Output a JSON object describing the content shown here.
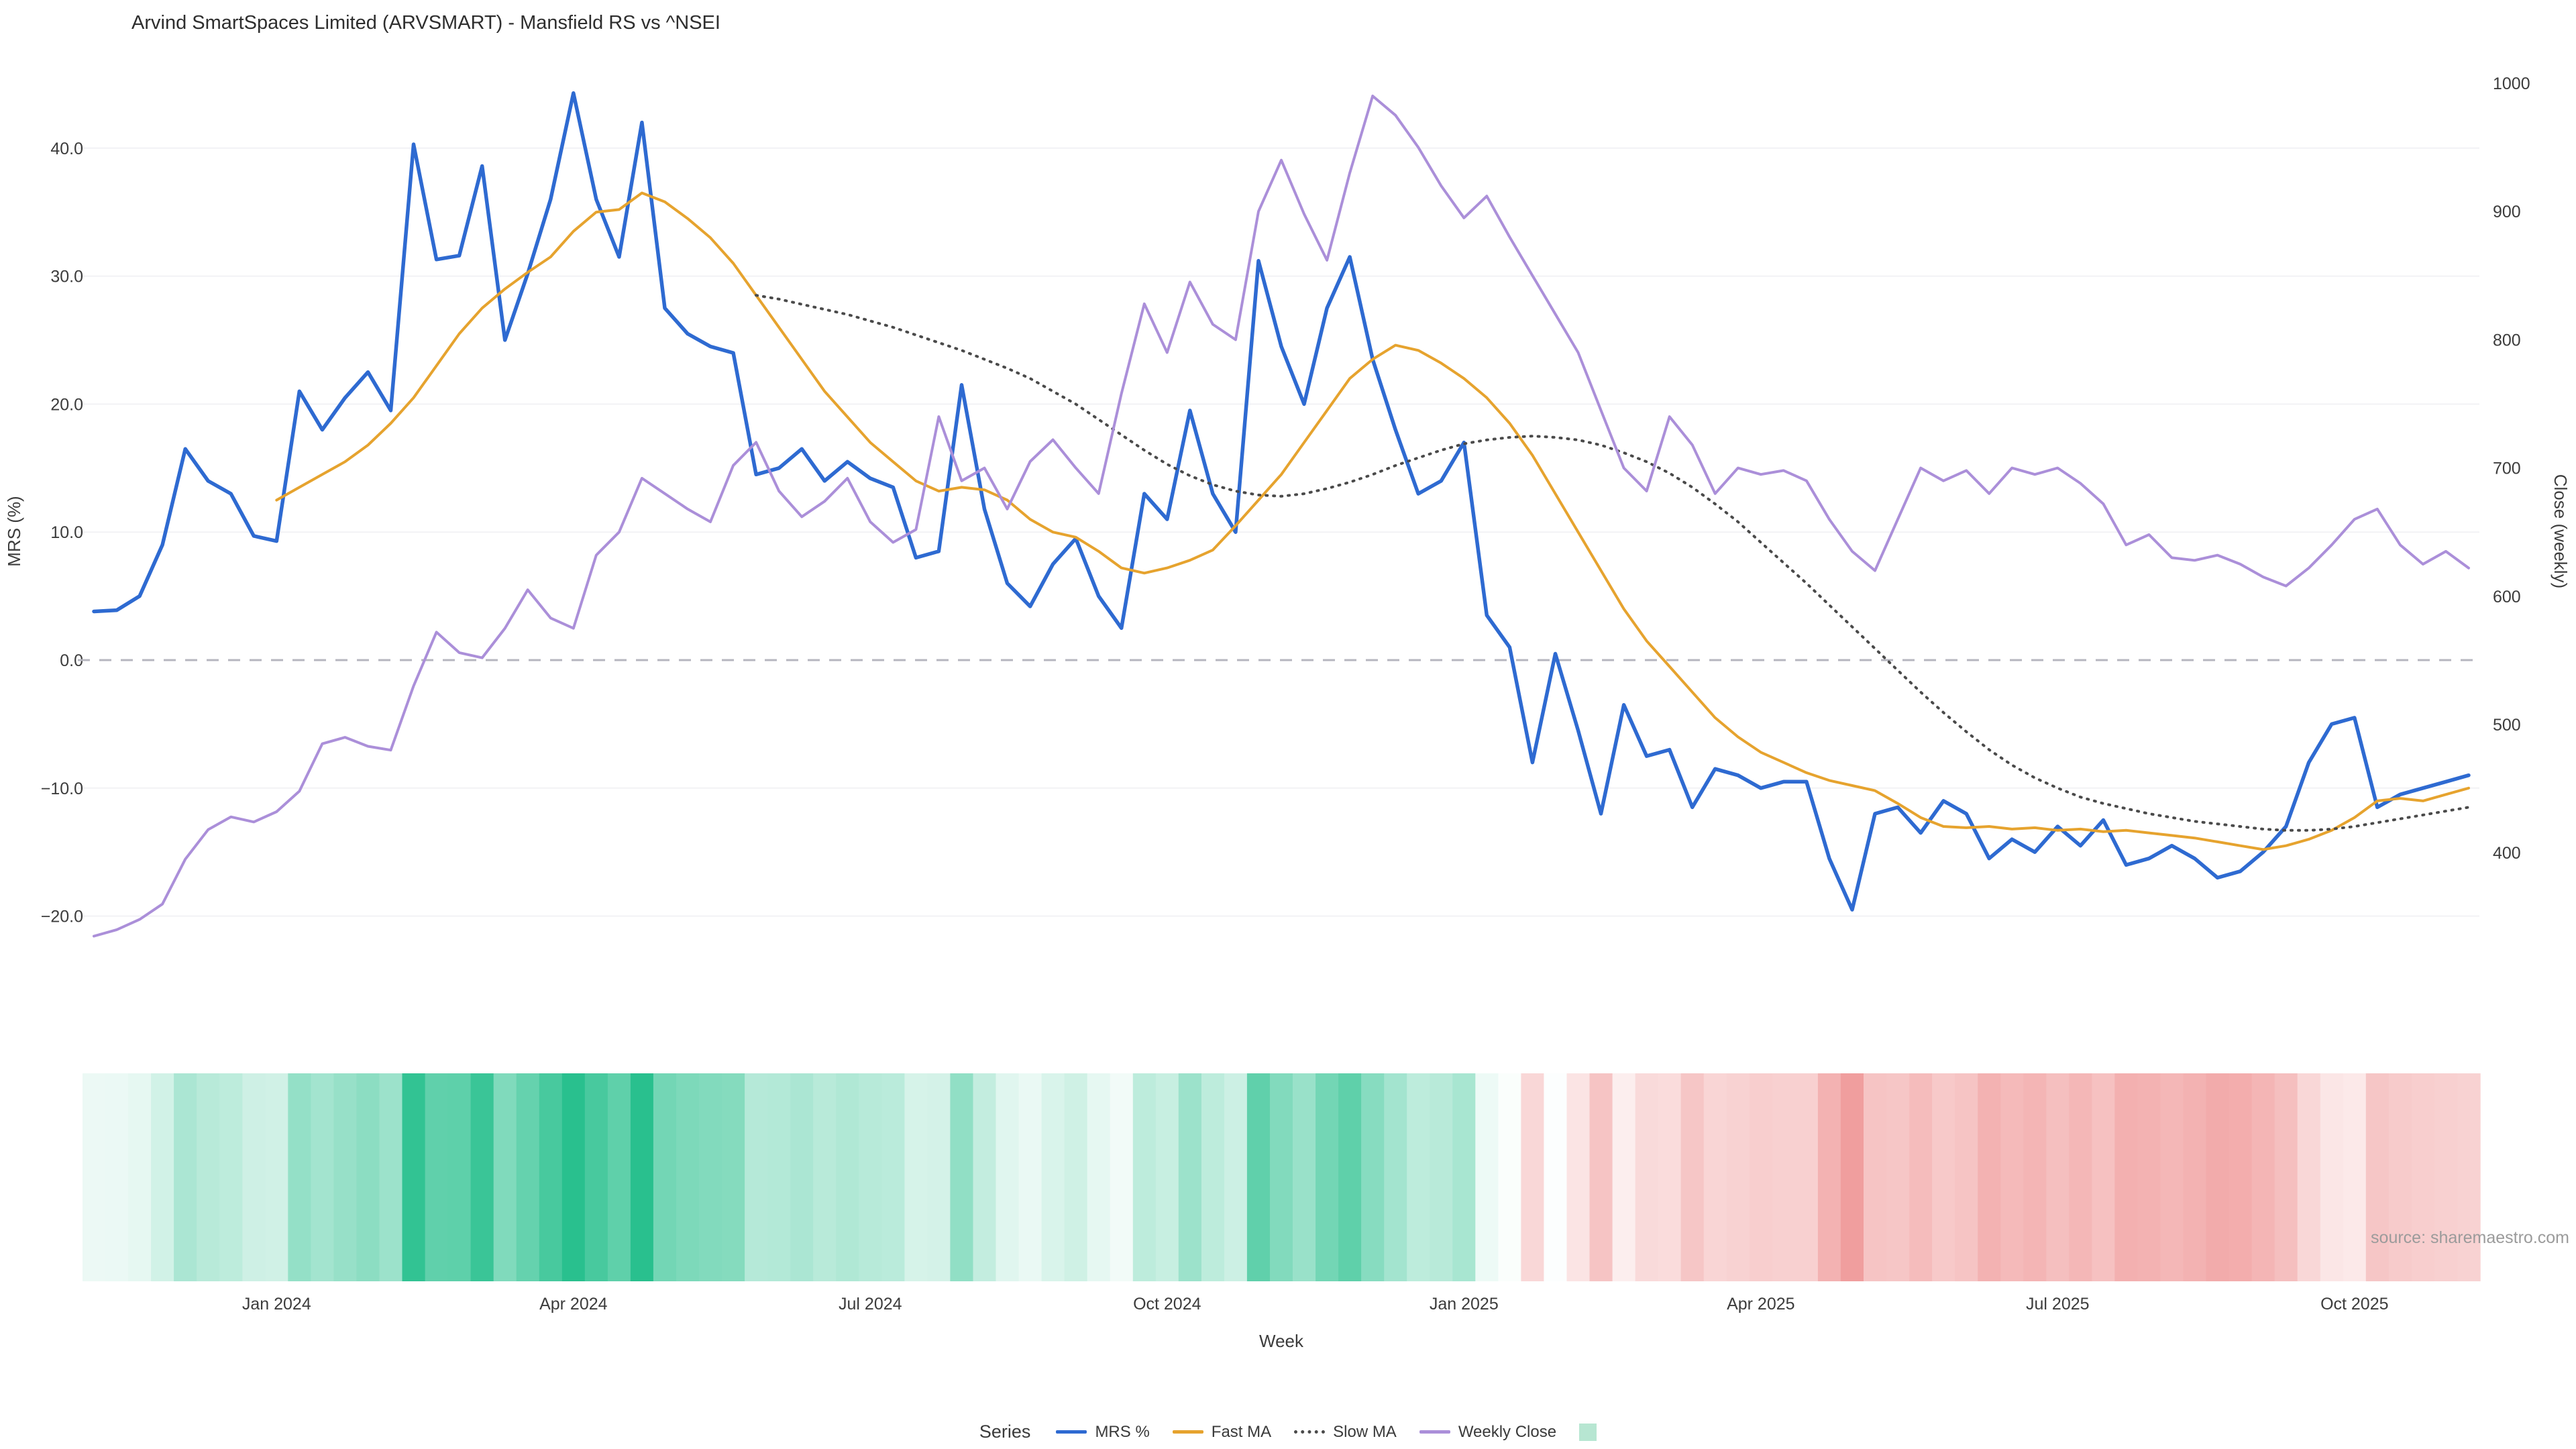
{
  "title": "Arvind SmartSpaces Limited (ARVSMART) - Mansfield RS vs ^NSEI",
  "source": "source: sharemaestro.com",
  "legend": {
    "title": "Series",
    "items": [
      {
        "label": "MRS %",
        "slug": "mrs",
        "swatch": "line",
        "color": "#2e6ad1"
      },
      {
        "label": "Fast MA",
        "slug": "fast-ma",
        "swatch": "line",
        "color": "#e6a32e"
      },
      {
        "label": "Slow MA",
        "slug": "slow-ma",
        "swatch": "dotted",
        "color": "#4a4a4a"
      },
      {
        "label": "Weekly Close",
        "slug": "weekly-close",
        "swatch": "line",
        "color": "#ab8fd9"
      },
      {
        "label": "",
        "slug": "heatmap",
        "swatch": "square",
        "color": "#b7e6d2"
      }
    ]
  },
  "chart_data": {
    "type": "line",
    "title": "Arvind SmartSpaces Limited (ARVSMART) - Mansfield RS vs ^NSEI",
    "xlabel": "Week",
    "ylabel_left": "MRS (%)",
    "ylabel_right": "Close (weekly)",
    "n_weeks": 105,
    "x_tick_indices": [
      8,
      21,
      34,
      47,
      60,
      73,
      86,
      99
    ],
    "x_tick_labels": [
      "Jan 2024",
      "Apr 2024",
      "Jul 2024",
      "Oct 2024",
      "Jan 2025",
      "Apr 2025",
      "Jul 2025",
      "Oct 2025"
    ],
    "left_axis": {
      "values": [
        40,
        30,
        20,
        10,
        0,
        -10,
        -20
      ],
      "labels": [
        "40.0",
        "30.0",
        "20.0",
        "10.0",
        "0.0",
        "−10.0",
        "−20.0"
      ]
    },
    "right_axis": {
      "values": [
        1000,
        900,
        800,
        700,
        600,
        500,
        400
      ],
      "labels": [
        "1000",
        "900",
        "800",
        "700",
        "600",
        "500",
        "400"
      ]
    },
    "zero_line": true,
    "grid": "horizontal",
    "legend_position": "bottom-center",
    "series": [
      {
        "name": "MRS %",
        "slug": "mrs",
        "axis": "left",
        "style": "solid",
        "color": "#2e6ad1",
        "values": [
          3.8,
          3.9,
          5.0,
          9.0,
          16.5,
          14.0,
          13.0,
          9.7,
          9.3,
          21.0,
          18.0,
          20.5,
          22.5,
          19.5,
          40.3,
          31.3,
          31.6,
          38.6,
          25.0,
          30.2,
          36.0,
          44.3,
          36.0,
          31.5,
          42.0,
          27.5,
          25.5,
          24.5,
          24.0,
          14.5,
          15.0,
          16.5,
          14.0,
          15.5,
          14.2,
          13.5,
          8.0,
          8.5,
          21.5,
          11.8,
          6.0,
          4.2,
          7.5,
          9.5,
          5.0,
          2.5,
          13.0,
          11.0,
          19.5,
          13.0,
          10.0,
          31.2,
          24.5,
          20.0,
          27.5,
          31.5,
          23.5,
          18.0,
          13.0,
          14.0,
          17.0,
          3.5,
          1.0,
          -8.0,
          0.5,
          -5.5,
          -12.0,
          -3.5,
          -7.5,
          -7.0,
          -11.5,
          -8.5,
          -9.0,
          -10.0,
          -9.5,
          -9.5,
          -15.5,
          -19.5,
          -12.0,
          -11.5,
          -13.5,
          -11.0,
          -12.0,
          -15.5,
          -14.0,
          -15.0,
          -13.0,
          -14.5,
          -12.5,
          -16.0,
          -15.5,
          -14.5,
          -15.5,
          -17.0,
          -16.5,
          -15.0,
          -13.0,
          -8.0,
          -5.0,
          -4.5,
          -11.5,
          -10.5,
          -10.0,
          -9.5,
          -9.0
        ]
      },
      {
        "name": "Fast MA",
        "slug": "fast-ma",
        "axis": "left",
        "style": "solid",
        "color": "#e6a32e",
        "values": [
          null,
          null,
          null,
          null,
          null,
          null,
          null,
          null,
          12.5,
          13.5,
          14.5,
          15.5,
          16.8,
          18.5,
          20.5,
          23.0,
          25.5,
          27.5,
          29.0,
          30.3,
          31.5,
          33.5,
          35.0,
          35.2,
          36.5,
          35.8,
          34.5,
          33.0,
          31.0,
          28.5,
          26.0,
          23.5,
          21.0,
          19.0,
          17.0,
          15.5,
          14.0,
          13.2,
          13.5,
          13.3,
          12.5,
          11.0,
          10.0,
          9.6,
          8.5,
          7.2,
          6.8,
          7.2,
          7.8,
          8.6,
          10.5,
          12.5,
          14.5,
          17.0,
          19.5,
          22.0,
          23.5,
          24.6,
          24.2,
          23.2,
          22.0,
          20.5,
          18.5,
          16.0,
          13.0,
          10.0,
          7.0,
          4.0,
          1.5,
          -0.5,
          -2.5,
          -4.5,
          -6.0,
          -7.2,
          -8.0,
          -8.8,
          -9.4,
          -9.8,
          -10.2,
          -11.2,
          -12.3,
          -13.0,
          -13.1,
          -13.0,
          -13.2,
          -13.1,
          -13.3,
          -13.2,
          -13.4,
          -13.3,
          -13.5,
          -13.7,
          -13.9,
          -14.2,
          -14.5,
          -14.8,
          -14.5,
          -14.0,
          -13.3,
          -12.3,
          -11.0,
          -10.8,
          -11.0,
          -10.5,
          -10.0
        ]
      },
      {
        "name": "Slow MA",
        "slug": "slow-ma",
        "axis": "left",
        "style": "dotted",
        "color": "#4a4a4a",
        "values": [
          null,
          null,
          null,
          null,
          null,
          null,
          null,
          null,
          null,
          null,
          null,
          null,
          null,
          null,
          null,
          null,
          null,
          null,
          null,
          null,
          null,
          null,
          null,
          null,
          null,
          null,
          null,
          null,
          null,
          28.5,
          28.2,
          27.8,
          27.4,
          27.0,
          26.5,
          26.0,
          25.4,
          24.8,
          24.2,
          23.5,
          22.8,
          22.0,
          21.0,
          20.0,
          18.8,
          17.6,
          16.4,
          15.3,
          14.4,
          13.7,
          13.2,
          12.9,
          12.8,
          13.0,
          13.4,
          13.9,
          14.5,
          15.2,
          15.8,
          16.4,
          16.9,
          17.2,
          17.4,
          17.5,
          17.4,
          17.2,
          16.8,
          16.2,
          15.5,
          14.6,
          13.5,
          12.2,
          10.8,
          9.2,
          7.6,
          6.0,
          4.3,
          2.6,
          0.9,
          -0.8,
          -2.5,
          -4.1,
          -5.6,
          -7.0,
          -8.2,
          -9.2,
          -10.0,
          -10.7,
          -11.2,
          -11.6,
          -12.0,
          -12.3,
          -12.6,
          -12.8,
          -13.0,
          -13.2,
          -13.3,
          -13.3,
          -13.2,
          -13.0,
          -12.7,
          -12.4,
          -12.1,
          -11.8,
          -11.5
        ]
      },
      {
        "name": "Weekly Close",
        "slug": "weekly-close",
        "axis": "right",
        "style": "solid",
        "color": "#ab8fd9",
        "values": [
          335,
          340,
          348,
          360,
          395,
          418,
          428,
          424,
          432,
          448,
          485,
          490,
          483,
          480,
          530,
          572,
          556,
          552,
          575,
          605,
          583,
          575,
          632,
          650,
          692,
          680,
          668,
          658,
          702,
          720,
          682,
          662,
          674,
          692,
          658,
          642,
          652,
          740,
          690,
          700,
          668,
          705,
          722,
          700,
          680,
          758,
          828,
          790,
          845,
          812,
          800,
          900,
          940,
          898,
          862,
          930,
          990,
          975,
          950,
          920,
          895,
          912,
          880,
          850,
          820,
          790,
          745,
          700,
          682,
          740,
          718,
          680,
          700,
          695,
          698,
          690,
          660,
          635,
          620,
          660,
          700,
          690,
          698,
          680,
          700,
          695,
          700,
          688,
          672,
          640,
          648,
          630,
          628,
          632,
          625,
          615,
          608,
          622,
          640,
          660,
          668,
          640,
          625,
          635,
          622
        ]
      }
    ],
    "heatmap": {
      "basis": "MRS %",
      "positive_color": "#29c08e",
      "negative_color": "#f09c9c",
      "positive_max": 42,
      "negative_max": 20
    }
  }
}
